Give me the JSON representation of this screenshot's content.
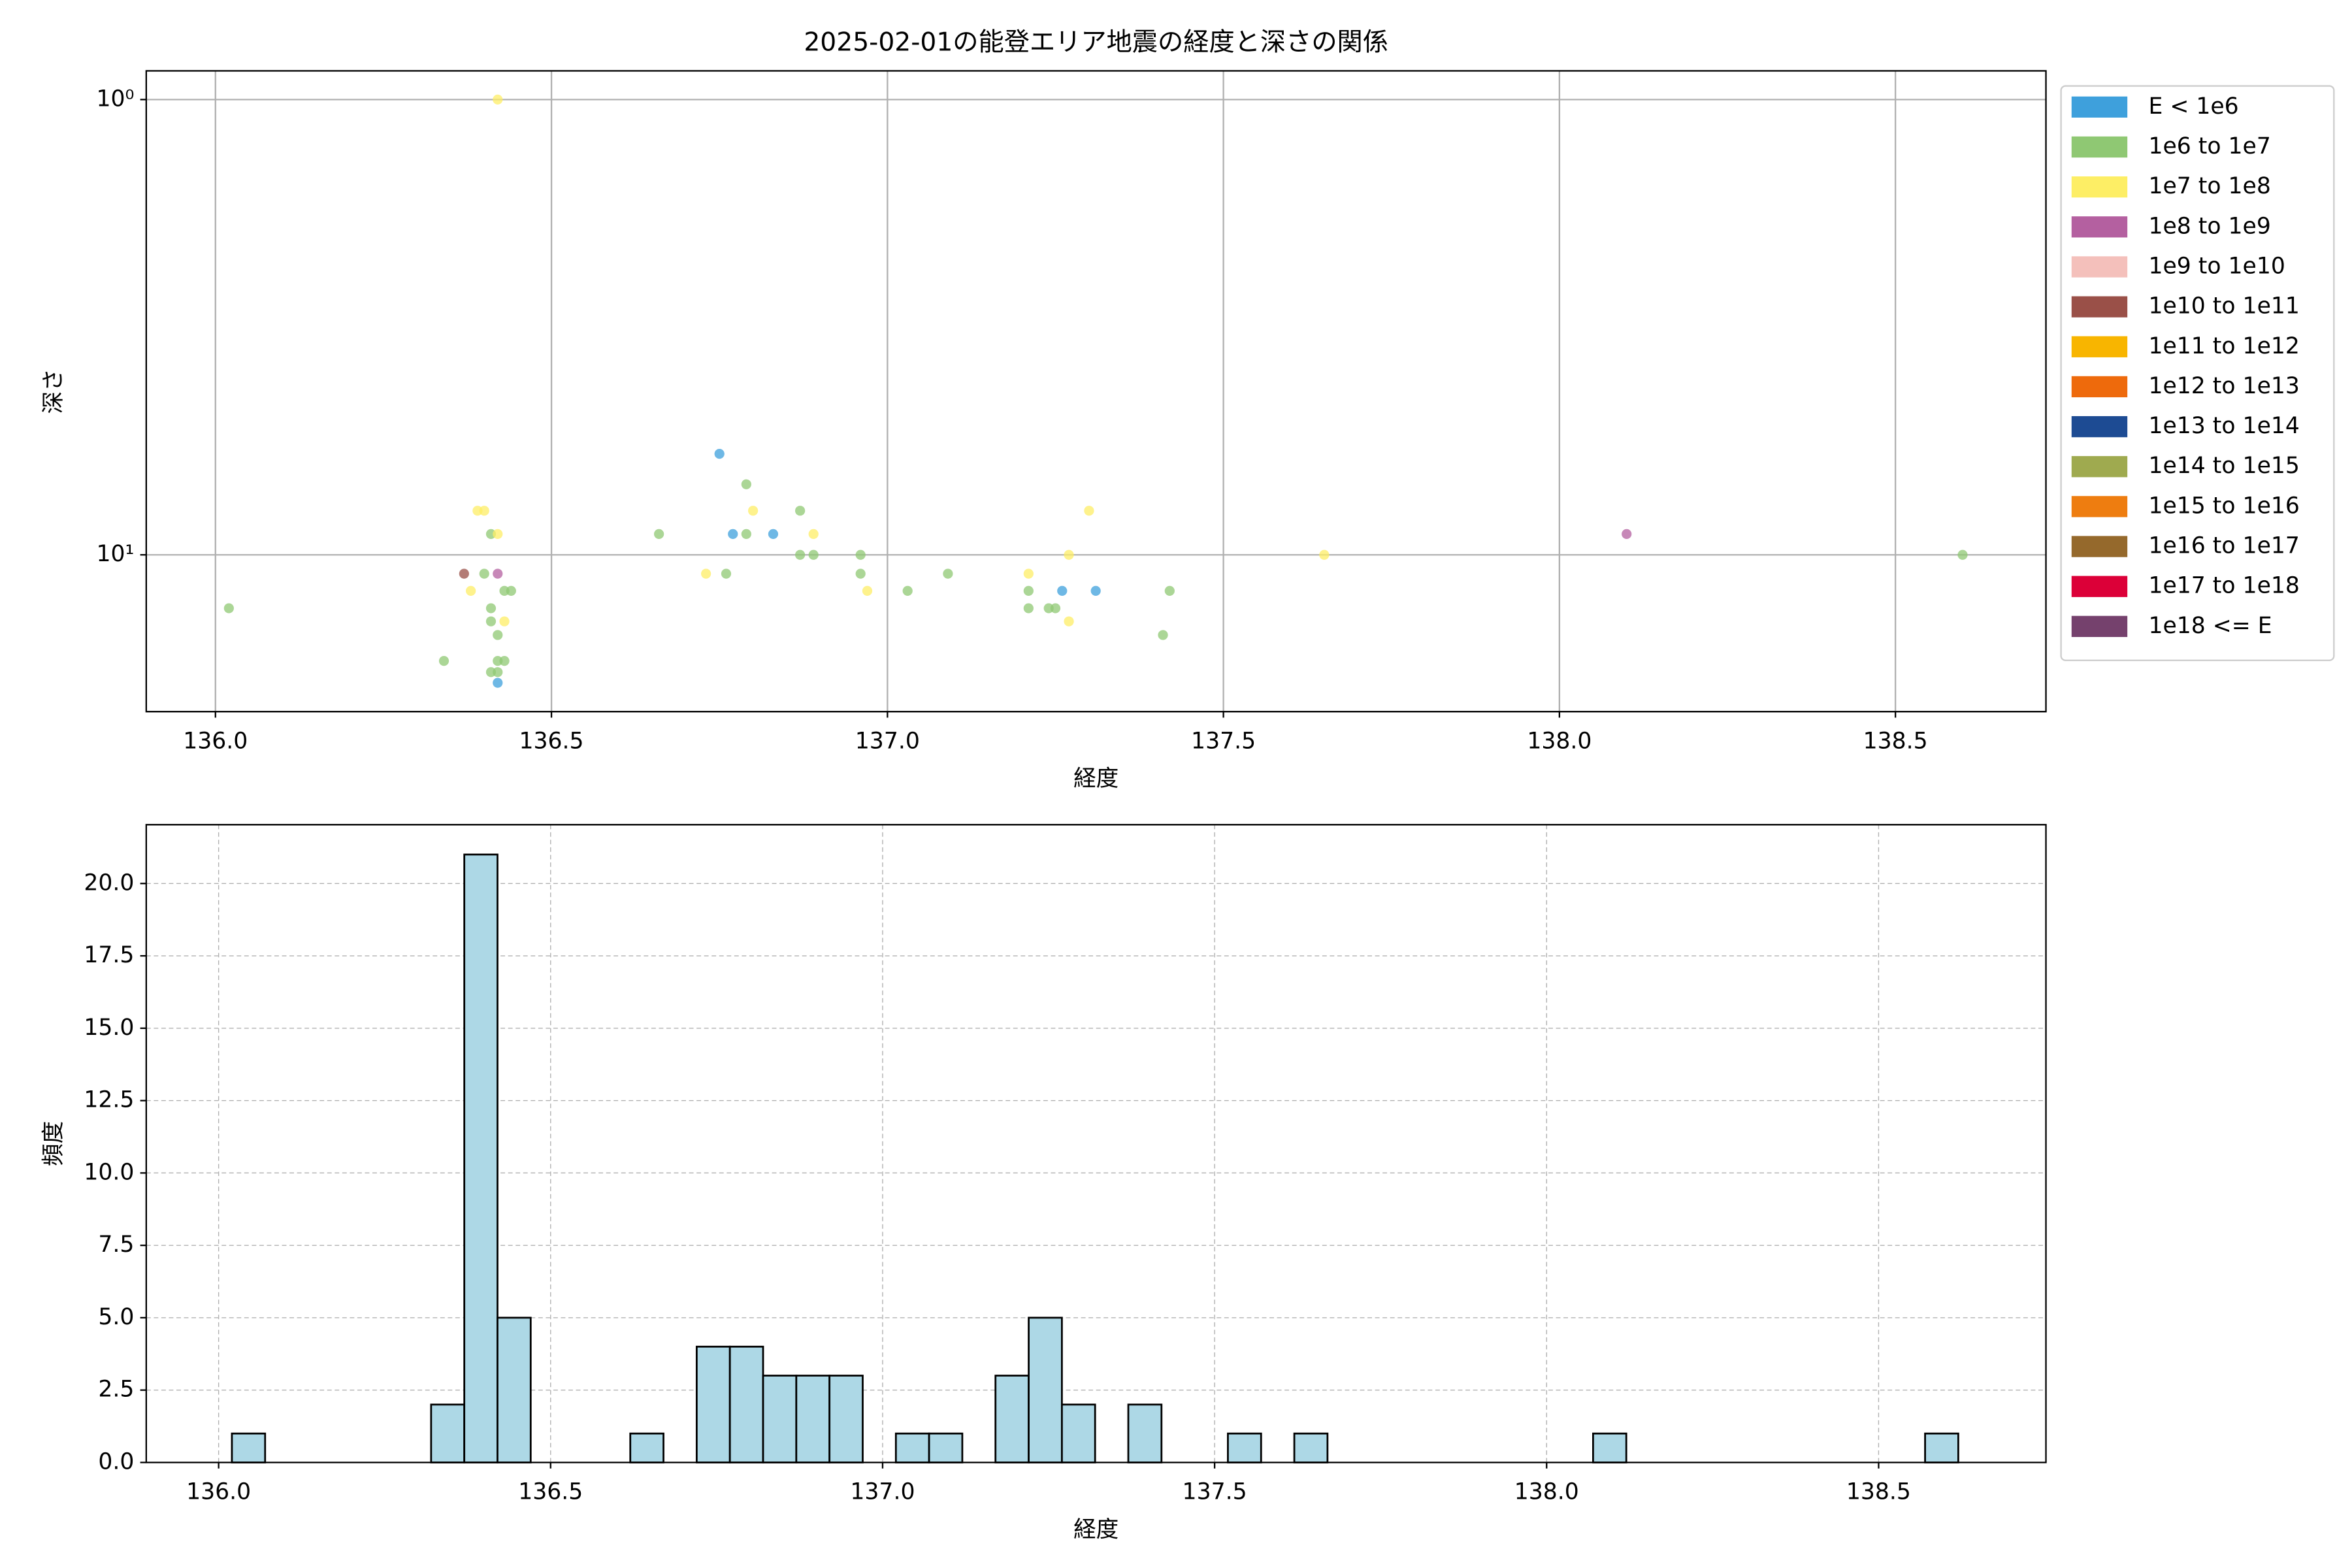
{
  "chart_data": [
    {
      "type": "scatter",
      "title": "2025-02-01の能登エリア地震の経度と深さの関係",
      "xlabel": "経度",
      "ylabel": "深さ",
      "xlim": [
        135.897,
        138.724
      ],
      "xticks": [
        {
          "value": 136,
          "label": "136.0"
        },
        136.5,
        {
          "value": 137,
          "label": "137.0"
        },
        137.5,
        {
          "value": 138,
          "label": "138.0"
        },
        138.5
      ],
      "ylim": [
        0.865,
        22.1
      ],
      "yscale": "log",
      "y_inverted": true,
      "yticks": [
        {
          "value": 1,
          "label": "10⁰"
        },
        {
          "value": 10,
          "label": "10¹"
        }
      ],
      "grid": true,
      "legend": "outside upper right",
      "series": [
        {
          "name": "E < 1e6",
          "color": "#3ea0dc",
          "x": [
            136.42,
            136.75,
            136.77,
            136.83,
            137.26,
            137.31
          ],
          "values": [
            19.1,
            6.0,
            9,
            9,
            12,
            12
          ]
        },
        {
          "name": "1e6 to 1e7",
          "color": "#8fc873",
          "x": [
            136.02,
            136.34,
            136.4,
            136.41,
            136.41,
            136.41,
            136.41,
            136.42,
            136.42,
            136.42,
            136.43,
            136.44,
            136.43,
            136.66,
            136.76,
            136.79,
            136.79,
            136.87,
            136.87,
            136.89,
            136.96,
            136.96,
            137.03,
            137.09,
            137.21,
            137.21,
            137.24,
            137.25,
            137.41,
            137.42,
            138.6
          ],
          "values": [
            13.1,
            17.1,
            11,
            13.1,
            14,
            18.1,
            9,
            15,
            18.1,
            17.1,
            17.1,
            12,
            12,
            9,
            11,
            7,
            9,
            8,
            10,
            10,
            10,
            11,
            12,
            11,
            12,
            13.1,
            13.1,
            13.1,
            15,
            12,
            10
          ]
        },
        {
          "name": "1e7 to 1e8",
          "color": "#fdee65",
          "x": [
            136.38,
            136.39,
            136.4,
            136.42,
            136.42,
            136.43,
            136.73,
            136.8,
            136.89,
            136.97,
            137.21,
            137.27,
            137.27,
            137.3,
            137.65
          ],
          "values": [
            12,
            8,
            8,
            9,
            1,
            14,
            11,
            8,
            9,
            12,
            11,
            10,
            14,
            8,
            10
          ]
        },
        {
          "name": "1e8 to 1e9",
          "color": "#b460a0",
          "x": [
            136.42,
            138.1
          ],
          "values": [
            11,
            9
          ]
        },
        {
          "name": "1e9 to 1e10",
          "color": "#f4c0bb",
          "x": [],
          "values": []
        },
        {
          "name": "1e10 to 1e11",
          "color": "#9a5048",
          "x": [
            136.37
          ],
          "values": [
            11
          ]
        },
        {
          "name": "1e11 to 1e12",
          "color": "#f8b500",
          "x": [],
          "values": []
        },
        {
          "name": "1e12 to 1e13",
          "color": "#ee6a0c",
          "x": [],
          "values": []
        },
        {
          "name": "1e13 to 1e14",
          "color": "#1d4b93",
          "x": [],
          "values": []
        },
        {
          "name": "1e14 to 1e15",
          "color": "#9faa4f",
          "x": [],
          "values": []
        },
        {
          "name": "1e15 to 1e16",
          "color": "#ee7d10",
          "x": [],
          "values": []
        },
        {
          "name": "1e16 to 1e17",
          "color": "#95692c",
          "x": [],
          "values": []
        },
        {
          "name": "1e17 to 1e18",
          "color": "#dc0038",
          "x": [],
          "values": []
        },
        {
          "name": "1e18 <= E",
          "color": "#75416d",
          "x": [],
          "values": []
        }
      ]
    },
    {
      "type": "histogram",
      "xlabel": "経度",
      "ylabel": "頻度",
      "color": "#add8e6",
      "edgecolor": "#000000",
      "xlim": [
        135.891,
        138.752
      ],
      "xticks": [
        {
          "value": 136,
          "label": "136.0"
        },
        136.5,
        {
          "value": 137,
          "label": "137.0"
        },
        137.5,
        {
          "value": 138,
          "label": "138.0"
        },
        138.5
      ],
      "ylim": [
        0,
        22.03
      ],
      "yticks": [
        {
          "value": 0,
          "label": "0.0"
        },
        2.5,
        {
          "value": 5,
          "label": "5.0"
        },
        7.5,
        {
          "value": 10,
          "label": "10.0"
        },
        12.5,
        {
          "value": 15,
          "label": "15.0"
        },
        17.5,
        {
          "value": 20,
          "label": "20.0"
        }
      ],
      "grid": true,
      "grid_style": "dashed",
      "bins": [
        136.02,
        136.07,
        136.12,
        136.17,
        136.22,
        136.27,
        136.32,
        136.37,
        136.42,
        136.47,
        136.52,
        136.57,
        136.62,
        136.67,
        136.72,
        136.77,
        136.82,
        136.87,
        136.92,
        136.97,
        137.02,
        137.07,
        137.12,
        137.17,
        137.22,
        137.27,
        137.32,
        137.37,
        137.42,
        137.47,
        137.52,
        137.57,
        137.62,
        137.67,
        137.72,
        137.77,
        137.82,
        137.87,
        137.92,
        137.97,
        138.02,
        138.07,
        138.12,
        138.17,
        138.22,
        138.27,
        138.32,
        138.37,
        138.42,
        138.47,
        138.52,
        138.57,
        138.62
      ],
      "values": [
        1,
        0,
        0,
        0,
        0,
        0,
        2,
        21,
        5,
        0,
        0,
        0,
        1,
        0,
        4,
        4,
        3,
        3,
        3,
        0,
        1,
        1,
        0,
        3,
        5,
        2,
        0,
        2,
        0,
        0,
        1,
        0,
        1,
        0,
        0,
        0,
        0,
        0,
        0,
        0,
        0,
        1,
        0,
        0,
        0,
        0,
        0,
        0,
        0,
        0,
        0,
        1
      ]
    }
  ]
}
